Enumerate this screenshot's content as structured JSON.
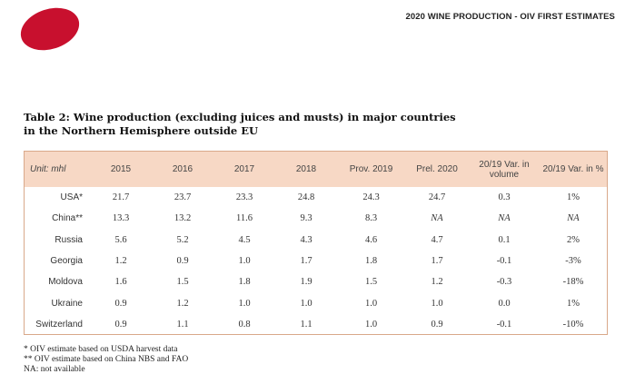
{
  "header": {
    "title": "2020 WINE PRODUCTION - OIV FIRST ESTIMATES"
  },
  "table_title": {
    "line1": "Table 2: Wine production (excluding juices and musts) in major countries",
    "line2": "in the Northern Hemisphere outside EU"
  },
  "table": {
    "columns": [
      "Unit: mhl",
      "2015",
      "2016",
      "2017",
      "2018",
      "Prov. 2019",
      "Prel. 2020",
      "20/19 Var. in volume",
      "20/19 Var. in %"
    ],
    "rows": [
      [
        "USA*",
        "21.7",
        "23.7",
        "23.3",
        "24.8",
        "24.3",
        "24.7",
        "0.3",
        "1%"
      ],
      [
        "China**",
        "13.3",
        "13.2",
        "11.6",
        "9.3",
        "8.3",
        "NA",
        "NA",
        "NA"
      ],
      [
        "Russia",
        "5.6",
        "5.2",
        "4.5",
        "4.3",
        "4.6",
        "4.7",
        "0.1",
        "2%"
      ],
      [
        "Georgia",
        "1.2",
        "0.9",
        "1.0",
        "1.7",
        "1.8",
        "1.7",
        "-0.1",
        "-3%"
      ],
      [
        "Moldova",
        "1.6",
        "1.5",
        "1.8",
        "1.9",
        "1.5",
        "1.2",
        "-0.3",
        "-18%"
      ],
      [
        "Ukraine",
        "0.9",
        "1.2",
        "1.0",
        "1.0",
        "1.0",
        "1.0",
        "0.0",
        "1%"
      ],
      [
        "Switzerland",
        "0.9",
        "1.1",
        "0.8",
        "1.1",
        "1.0",
        "0.9",
        "-0.1",
        "-10%"
      ]
    ]
  },
  "notes": [
    "* OIV estimate based on USDA harvest data",
    "** OIV estimate based on China NBS and FAO",
    "NA: not available"
  ],
  "colors": {
    "accent": "#c8102e",
    "header_fill": "#f7d8c5",
    "border": "#d9a88a"
  }
}
